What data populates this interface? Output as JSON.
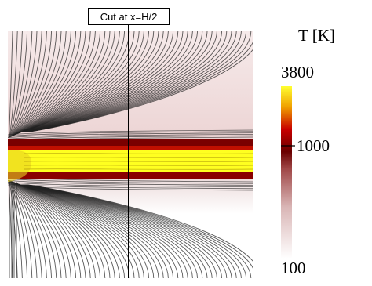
{
  "annotation": {
    "cut_label": "Cut at x=H/2"
  },
  "colorbar": {
    "title": "T [K]",
    "tick_max": "3800",
    "tick_mid": "1000",
    "tick_min": "100",
    "colors": [
      "#ffffff",
      "#d9b0b0",
      "#a04040",
      "#6a0000",
      "#c80000",
      "#ffe000",
      "#ffff33"
    ]
  },
  "field": {
    "hot_layer_color": "#ffff20",
    "rim_color": "#6a0000",
    "upper_background": "#f4e4e4",
    "lower_background": "#ffffff"
  }
}
